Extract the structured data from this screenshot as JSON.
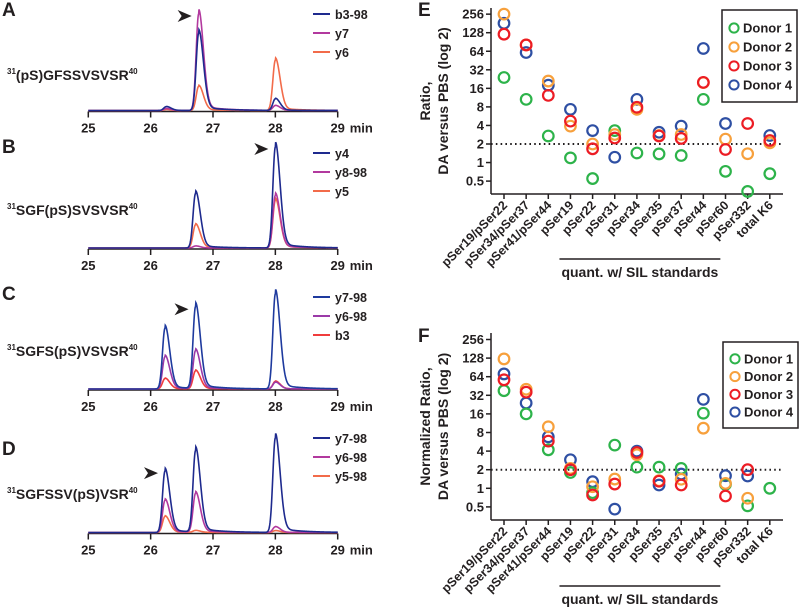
{
  "figure": {
    "panel_letters": [
      "A",
      "B",
      "C",
      "D",
      "E",
      "F"
    ]
  },
  "chart_data": [
    {
      "panel": "A",
      "type": "line",
      "title": "",
      "peptide": {
        "pre": "31",
        "seq": "(pS)GFSSVSVSR",
        "post": "40"
      },
      "xlabel": "min",
      "xticks": [
        25,
        26,
        27,
        28,
        29
      ],
      "xlim": [
        25,
        29
      ],
      "marked_peak_min": 26.77,
      "series": [
        {
          "name": "b3-98",
          "color": "#1e2a8e",
          "peaks": [
            {
              "rt": 26.25,
              "height": 0.04
            },
            {
              "rt": 26.77,
              "height": 0.8
            },
            {
              "rt": 28.0,
              "height": 0.12
            }
          ]
        },
        {
          "name": "y7",
          "color": "#b2399e",
          "peaks": [
            {
              "rt": 26.25,
              "height": 0.02
            },
            {
              "rt": 26.77,
              "height": 1.0
            },
            {
              "rt": 28.0,
              "height": 0.05
            }
          ]
        },
        {
          "name": "y6",
          "color": "#f26b4a",
          "peaks": [
            {
              "rt": 26.25,
              "height": 0.01
            },
            {
              "rt": 26.77,
              "height": 0.25
            },
            {
              "rt": 28.0,
              "height": 0.52
            }
          ]
        }
      ]
    },
    {
      "panel": "B",
      "type": "line",
      "peptide": {
        "pre": "31",
        "seq": "SGF(pS)SVSVSR",
        "post": "40"
      },
      "xlabel": "min",
      "xticks": [
        25,
        26,
        27,
        28,
        29
      ],
      "xlim": [
        25,
        29
      ],
      "marked_peak_min": 28.0,
      "series": [
        {
          "name": "y4",
          "color": "#1e2a8e",
          "peaks": [
            {
              "rt": 26.72,
              "height": 0.54
            },
            {
              "rt": 28.0,
              "height": 1.0
            }
          ]
        },
        {
          "name": "y8-98",
          "color": "#b2399e",
          "peaks": [
            {
              "rt": 26.72,
              "height": 0.02
            },
            {
              "rt": 28.0,
              "height": 0.52
            }
          ]
        },
        {
          "name": "y5",
          "color": "#f26b4a",
          "peaks": [
            {
              "rt": 26.72,
              "height": 0.23
            },
            {
              "rt": 28.0,
              "height": 0.47
            }
          ]
        }
      ]
    },
    {
      "panel": "C",
      "type": "line",
      "peptide": {
        "pre": "31",
        "seq": "SGFS(pS)VSVSR",
        "post": "40"
      },
      "xlabel": "min",
      "xticks": [
        25,
        26,
        27,
        28,
        29
      ],
      "xlim": [
        25,
        29
      ],
      "marked_peak_min": 26.72,
      "series": [
        {
          "name": "y7-98",
          "color": "#1e3a9e",
          "peaks": [
            {
              "rt": 26.23,
              "height": 0.64
            },
            {
              "rt": 26.72,
              "height": 0.86
            },
            {
              "rt": 28.0,
              "height": 1.0
            }
          ]
        },
        {
          "name": "y6-98",
          "color": "#9b3aa8",
          "peaks": [
            {
              "rt": 26.23,
              "height": 0.34
            },
            {
              "rt": 26.72,
              "height": 0.4
            },
            {
              "rt": 28.0,
              "height": 0.07
            }
          ]
        },
        {
          "name": "b3",
          "color": "#f03c3c",
          "peaks": [
            {
              "rt": 26.23,
              "height": 0.11
            },
            {
              "rt": 26.72,
              "height": 0.19
            },
            {
              "rt": 28.0,
              "height": 0.08
            }
          ]
        }
      ]
    },
    {
      "panel": "D",
      "type": "line",
      "peptide": {
        "pre": "31",
        "seq": "SGFSSV(pS)VSR",
        "post": "40"
      },
      "xlabel": "min",
      "xticks": [
        25,
        26,
        27,
        28,
        29
      ],
      "xlim": [
        25,
        29
      ],
      "marked_peak_min": 26.23,
      "series": [
        {
          "name": "y7-98",
          "color": "#1e2a8e",
          "peaks": [
            {
              "rt": 26.23,
              "height": 0.65
            },
            {
              "rt": 26.72,
              "height": 0.86
            },
            {
              "rt": 28.0,
              "height": 1.0
            }
          ]
        },
        {
          "name": "y6-98",
          "color": "#b2399e",
          "peaks": [
            {
              "rt": 26.23,
              "height": 0.34
            },
            {
              "rt": 26.72,
              "height": 0.41
            },
            {
              "rt": 28.0,
              "height": 0.06
            }
          ]
        },
        {
          "name": "y5-98",
          "color": "#f26b4a",
          "peaks": [
            {
              "rt": 26.23,
              "height": 0.17
            },
            {
              "rt": 26.72,
              "height": 0.02
            },
            {
              "rt": 28.0,
              "height": 0.02
            }
          ]
        }
      ]
    },
    {
      "panel": "E",
      "type": "scatter",
      "ylabel_line1": "Ratio,",
      "ylabel_line2": "DA versus PBS (log 2)",
      "yscale": "log2",
      "yticks": [
        "256",
        "128",
        "64",
        "32",
        "16",
        "8",
        "4",
        "2",
        "1",
        "0.5"
      ],
      "ylim": [
        0.35,
        300
      ],
      "reference_line": 2,
      "categories": [
        "pSer19/pSer22",
        "pSer34/pSer37",
        "pSer41/pSer44",
        "pSer19",
        "pSer22",
        "pSer31",
        "pSer34",
        "pSer35",
        "pSer37",
        "pSer44",
        "pSer60",
        "pSer332",
        "total K6"
      ],
      "bracket_label": "quant. w/ SIL standards",
      "bracket_range": [
        "pSer19",
        "pSer44"
      ],
      "legend_position": "top-right",
      "series": [
        {
          "name": "Donor 1",
          "color": "#2db34a",
          "values": [
            24,
            10.6,
            2.7,
            1.19,
            0.55,
            3.3,
            1.43,
            1.38,
            1.3,
            10.6,
            0.72,
            0.34,
            0.66
          ]
        },
        {
          "name": "Donor 2",
          "color": "#f7a03c",
          "values": [
            256,
            81,
            21,
            3.9,
            2.0,
            2.85,
            7.3,
            2.75,
            2.85,
            19.8,
            2.4,
            1.39,
            2.09
          ]
        },
        {
          "name": "Donor 3",
          "color": "#ec1c24",
          "values": [
            121,
            81,
            12.3,
            4.7,
            1.67,
            2.5,
            7.9,
            2.7,
            2.46,
            20,
            1.63,
            4.3,
            2.28
          ]
        },
        {
          "name": "Donor 4",
          "color": "#2e4fa3",
          "values": [
            182,
            61,
            18,
            7.3,
            3.3,
            1.22,
            10.6,
            3.1,
            3.9,
            71,
            4.3,
            null,
            2.75
          ]
        }
      ]
    },
    {
      "panel": "F",
      "type": "scatter",
      "ylabel_line1": "Normalized Ratio,",
      "ylabel_line2": "DA versus PBS (log 2)",
      "yscale": "log2",
      "yticks": [
        "256",
        "128",
        "64",
        "32",
        "16",
        "8",
        "4",
        "2",
        "1",
        "0.5"
      ],
      "ylim": [
        0.35,
        300
      ],
      "reference_line": 2,
      "categories": [
        "pSer19/pSer22",
        "pSer34/pSer37",
        "pSer41/pSer44",
        "pSer19",
        "pSer22",
        "pSer31",
        "pSer34",
        "pSer35",
        "pSer37",
        "pSer44",
        "pSer60",
        "pSer332",
        "total K6"
      ],
      "bracket_label": "quant. w/ SIL standards",
      "bracket_range": [
        "pSer19",
        "pSer44"
      ],
      "legend_position": "top-right",
      "series": [
        {
          "name": "Donor 1",
          "color": "#2db34a",
          "values": [
            38,
            16,
            4.2,
            1.8,
            0.85,
            5.0,
            2.2,
            2.2,
            2.1,
            16.4,
            1.16,
            0.52,
            1.0
          ]
        },
        {
          "name": "Donor 2",
          "color": "#f7a03c",
          "values": [
            124,
            40,
            9.9,
            2.1,
            1.06,
            1.41,
            3.5,
            1.33,
            1.4,
            9.4,
            1.2,
            0.69,
            null
          ]
        },
        {
          "name": "Donor 3",
          "color": "#ec1c24",
          "values": [
            57,
            36,
            5.8,
            2.0,
            0.78,
            1.17,
            3.8,
            1.3,
            1.13,
            null,
            0.75,
            2.0,
            null
          ]
        },
        {
          "name": "Donor 4",
          "color": "#2e4fa3",
          "values": [
            71,
            24,
            6.8,
            2.9,
            1.28,
            0.46,
            4.0,
            1.13,
            1.7,
            27.5,
            1.6,
            1.58,
            null
          ]
        }
      ]
    }
  ]
}
